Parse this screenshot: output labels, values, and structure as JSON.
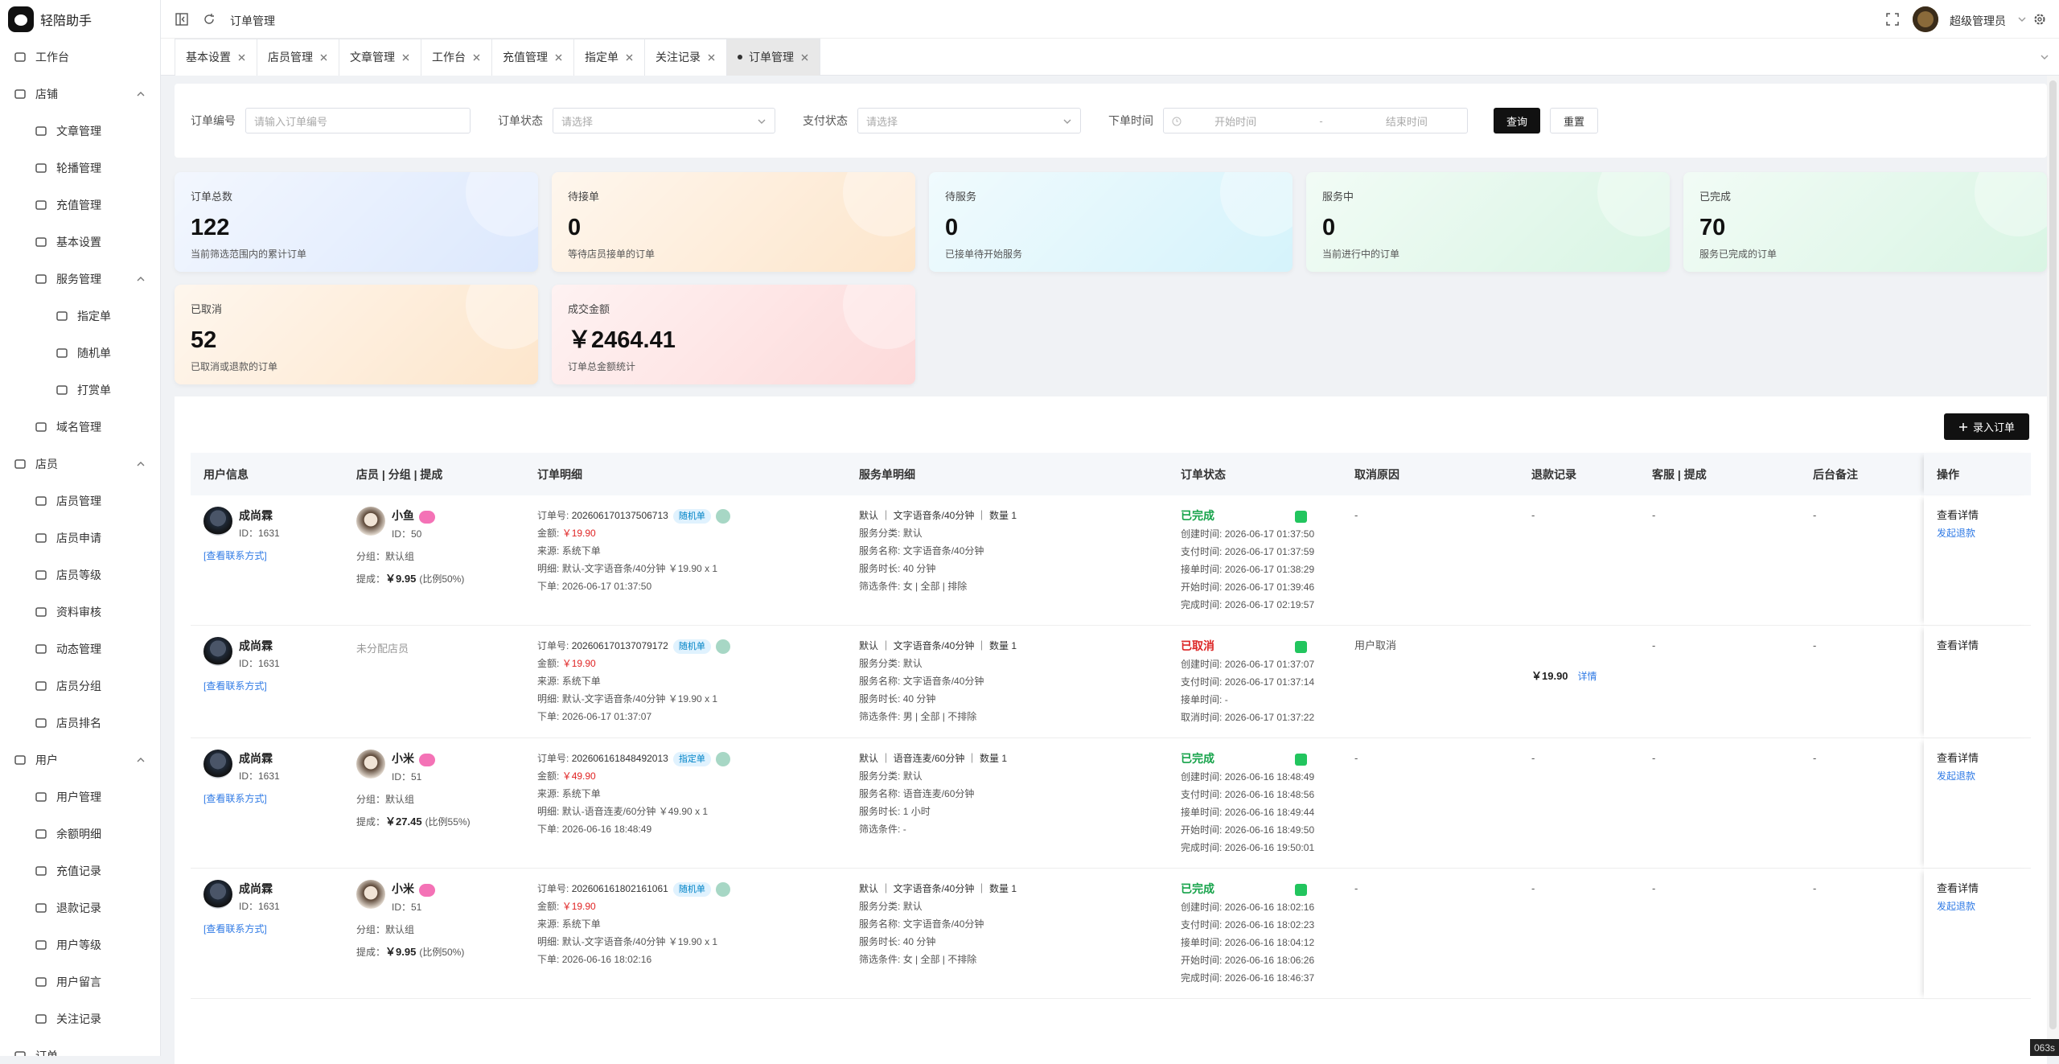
{
  "sidebar": {
    "brand": "轻陪助手",
    "menu": [
      {
        "label": "工作台"
      },
      {
        "label": "店铺",
        "children": [
          {
            "label": "文章管理"
          },
          {
            "label": "轮播管理"
          },
          {
            "label": "充值管理"
          },
          {
            "label": "基本设置"
          },
          {
            "label": "服务管理",
            "children": [
              {
                "label": "指定单"
              },
              {
                "label": "随机单"
              },
              {
                "label": "打赏单"
              }
            ]
          },
          {
            "label": "域名管理"
          }
        ]
      },
      {
        "label": "店员",
        "children": [
          {
            "label": "店员管理"
          },
          {
            "label": "店员申请"
          },
          {
            "label": "店员等级"
          },
          {
            "label": "资料审核"
          },
          {
            "label": "动态管理"
          },
          {
            "label": "店员分组"
          },
          {
            "label": "店员排名"
          }
        ]
      },
      {
        "label": "用户",
        "children": [
          {
            "label": "用户管理"
          },
          {
            "label": "余额明细"
          },
          {
            "label": "充值记录"
          },
          {
            "label": "退款记录"
          },
          {
            "label": "用户等级"
          },
          {
            "label": "用户留言"
          },
          {
            "label": "关注记录"
          }
        ]
      },
      {
        "label": "订单"
      }
    ]
  },
  "header": {
    "breadcrumb": "订单管理",
    "user": "超级管理员"
  },
  "tabs": [
    {
      "label": "基本设置"
    },
    {
      "label": "店员管理"
    },
    {
      "label": "文章管理"
    },
    {
      "label": "工作台"
    },
    {
      "label": "充值管理"
    },
    {
      "label": "指定单"
    },
    {
      "label": "关注记录"
    },
    {
      "label": "订单管理",
      "active": true
    }
  ],
  "filters": {
    "fields": [
      {
        "label": "订单编号",
        "placeholder": "请输入订单编号"
      },
      {
        "label": "订单状态",
        "placeholder": "请选择",
        "dropdown": true
      },
      {
        "label": "支付状态",
        "placeholder": "请选择",
        "dropdown": true
      },
      {
        "label": "下单时间",
        "start": "开始时间",
        "separator": "-",
        "end": "结束时间"
      }
    ],
    "search": "查询",
    "reset": "重置"
  },
  "stats": [
    {
      "title": "订单总数",
      "value": 122,
      "desc": "当前筛选范围内的累计订单",
      "color": "#dce8fd"
    },
    {
      "title": "待接单",
      "value": 0,
      "desc": "等待店员接单的订单",
      "color": "#fde6cc"
    },
    {
      "title": "待服务",
      "value": 0,
      "desc": "已接单待开始服务",
      "color": "#d5f3fb"
    },
    {
      "title": "服务中",
      "value": 0,
      "desc": "当前进行中的订单",
      "color": "#d9f5e4"
    },
    {
      "title": "已完成",
      "value": 70,
      "desc": "服务已完成的订单",
      "color": "#d9f5e4"
    },
    {
      "title": "已取消",
      "value": 52,
      "desc": "已取消或退款的订单",
      "color": "#fde6cc"
    },
    {
      "title": "成交金额",
      "value": "￥2464.41",
      "desc": "订单总金额统计",
      "color": "#fddada"
    }
  ],
  "table": {
    "add_button": "录入订单",
    "columns": [
      "用户信息",
      "店员 | 分组 | 提成",
      "订单明细",
      "服务单明细",
      "订单状态",
      "取消原因",
      "退款记录",
      "客服 | 提成",
      "后台备注",
      "操作"
    ],
    "rows": [
      {
        "user": {
          "name": "成尚霖",
          "id": "ID：1631",
          "contact": "[查看联系方式]"
        },
        "staff": {
          "name": "小鱼",
          "id": "ID：50",
          "group": "分组：默认组",
          "commission_label": "提成：",
          "commission": "￥9.95",
          "ratio": "(比例50%)"
        },
        "order": {
          "no_label": "订单号:",
          "no": "202606170137506713",
          "tag": "随机单",
          "amount_label": "金额:",
          "amount": "￥19.90",
          "lines": [
            [
              "来源:",
              "系统下单"
            ],
            [
              "明细:",
              "默认-文字语音条/40分钟 ￥19.90 x 1"
            ],
            [
              "下单:",
              "2026-06-17 01:37:50"
            ]
          ]
        },
        "service": {
          "summary": "默认 ｜ 文字语音条/40分钟 ｜ 数量 1",
          "lines": [
            [
              "服务分类:",
              "默认"
            ],
            [
              "服务名称:",
              "文字语音条/40分钟"
            ],
            [
              "服务时长:",
              "40 分钟"
            ],
            [
              "筛选条件:",
              "女 | 全部 | 排除"
            ]
          ]
        },
        "status": {
          "label": "已完成",
          "color": "#16a34a",
          "lines": [
            [
              "创建时间:",
              "2026-06-17 01:37:50"
            ],
            [
              "支付时间:",
              "2026-06-17 01:37:59"
            ],
            [
              "接单时间:",
              "2026-06-17 01:38:29"
            ],
            [
              "开始时间:",
              "2026-06-17 01:39:46"
            ],
            [
              "完成时间:",
              "2026-06-17 02:19:57"
            ]
          ]
        },
        "cancel": "-",
        "refund": "-",
        "kefu": "-",
        "remark": "-",
        "actions": [
          "查看详情",
          "发起退款"
        ]
      },
      {
        "user": {
          "name": "成尚霖",
          "id": "ID：1631",
          "contact": "[查看联系方式]"
        },
        "staff": {
          "unassigned": "未分配店员"
        },
        "order": {
          "no_label": "订单号:",
          "no": "202606170137079172",
          "tag": "随机单",
          "amount_label": "金额:",
          "amount": "￥19.90",
          "lines": [
            [
              "来源:",
              "系统下单"
            ],
            [
              "明细:",
              "默认-文字语音条/40分钟 ￥19.90 x 1"
            ],
            [
              "下单:",
              "2026-06-17 01:37:07"
            ]
          ]
        },
        "service": {
          "summary": "默认 ｜ 文字语音条/40分钟 ｜ 数量 1",
          "lines": [
            [
              "服务分类:",
              "默认"
            ],
            [
              "服务名称:",
              "文字语音条/40分钟"
            ],
            [
              "服务时长:",
              "40 分钟"
            ],
            [
              "筛选条件:",
              "男 | 全部 | 不排除"
            ]
          ]
        },
        "status": {
          "label": "已取消",
          "color": "#dc2626",
          "lines": [
            [
              "创建时间:",
              "2026-06-17 01:37:07"
            ],
            [
              "支付时间:",
              "2026-06-17 01:37:14"
            ],
            [
              "接单时间:",
              "-"
            ],
            [
              "取消时间:",
              "2026-06-17 01:37:22"
            ]
          ]
        },
        "cancel": "用户取消",
        "refund": {
          "amount": "￥19.90",
          "link": "详情"
        },
        "kefu": "-",
        "remark": "-",
        "actions": [
          "查看详情"
        ]
      },
      {
        "user": {
          "name": "成尚霖",
          "id": "ID：1631",
          "contact": "[查看联系方式]"
        },
        "staff": {
          "name": "小米",
          "id": "ID：51",
          "group": "分组：默认组",
          "commission_label": "提成：",
          "commission": "￥27.45",
          "ratio": "(比例55%)"
        },
        "order": {
          "no_label": "订单号:",
          "no": "202606161848492013",
          "tag": "指定单",
          "amount_label": "金额:",
          "amount": "￥49.90",
          "lines": [
            [
              "来源:",
              "系统下单"
            ],
            [
              "明细:",
              "默认-语音连麦/60分钟 ￥49.90 x 1"
            ],
            [
              "下单:",
              "2026-06-16 18:48:49"
            ]
          ]
        },
        "service": {
          "summary": "默认 ｜ 语音连麦/60分钟 ｜ 数量 1",
          "lines": [
            [
              "服务分类:",
              "默认"
            ],
            [
              "服务名称:",
              "语音连麦/60分钟"
            ],
            [
              "服务时长:",
              "1 小时"
            ],
            [
              "筛选条件:",
              "-"
            ]
          ]
        },
        "status": {
          "label": "已完成",
          "color": "#16a34a",
          "lines": [
            [
              "创建时间:",
              "2026-06-16 18:48:49"
            ],
            [
              "支付时间:",
              "2026-06-16 18:48:56"
            ],
            [
              "接单时间:",
              "2026-06-16 18:49:44"
            ],
            [
              "开始时间:",
              "2026-06-16 18:49:50"
            ],
            [
              "完成时间:",
              "2026-06-16 19:50:01"
            ]
          ]
        },
        "cancel": "-",
        "refund": "-",
        "kefu": "-",
        "remark": "-",
        "actions": [
          "查看详情",
          "发起退款"
        ]
      },
      {
        "user": {
          "name": "成尚霖",
          "id": "ID：1631",
          "contact": "[查看联系方式]"
        },
        "staff": {
          "name": "小米",
          "id": "ID：51",
          "group": "分组：默认组",
          "commission_label": "提成：",
          "commission": "￥9.95",
          "ratio": "(比例50%)"
        },
        "order": {
          "no_label": "订单号:",
          "no": "202606161802161061",
          "tag": "随机单",
          "amount_label": "金额:",
          "amount": "￥19.90",
          "lines": [
            [
              "来源:",
              "系统下单"
            ],
            [
              "明细:",
              "默认-文字语音条/40分钟 ￥19.90 x 1"
            ],
            [
              "下单:",
              "2026-06-16 18:02:16"
            ]
          ]
        },
        "service": {
          "summary": "默认 ｜ 文字语音条/40分钟 ｜ 数量 1",
          "lines": [
            [
              "服务分类:",
              "默认"
            ],
            [
              "服务名称:",
              "文字语音条/40分钟"
            ],
            [
              "服务时长:",
              "40 分钟"
            ],
            [
              "筛选条件:",
              "女 | 全部 | 不排除"
            ]
          ]
        },
        "status": {
          "label": "已完成",
          "color": "#16a34a",
          "lines": [
            [
              "创建时间:",
              "2026-06-16 18:02:16"
            ],
            [
              "支付时间:",
              "2026-06-16 18:02:23"
            ],
            [
              "接单时间:",
              "2026-06-16 18:04:12"
            ],
            [
              "开始时间:",
              "2026-06-16 18:06:26"
            ],
            [
              "完成时间:",
              "2026-06-16 18:46:37"
            ]
          ]
        },
        "cancel": "-",
        "refund": "-",
        "kefu": "-",
        "remark": "-",
        "actions": [
          "查看详情",
          "发起退款"
        ]
      }
    ]
  },
  "corner_badge": "063s"
}
